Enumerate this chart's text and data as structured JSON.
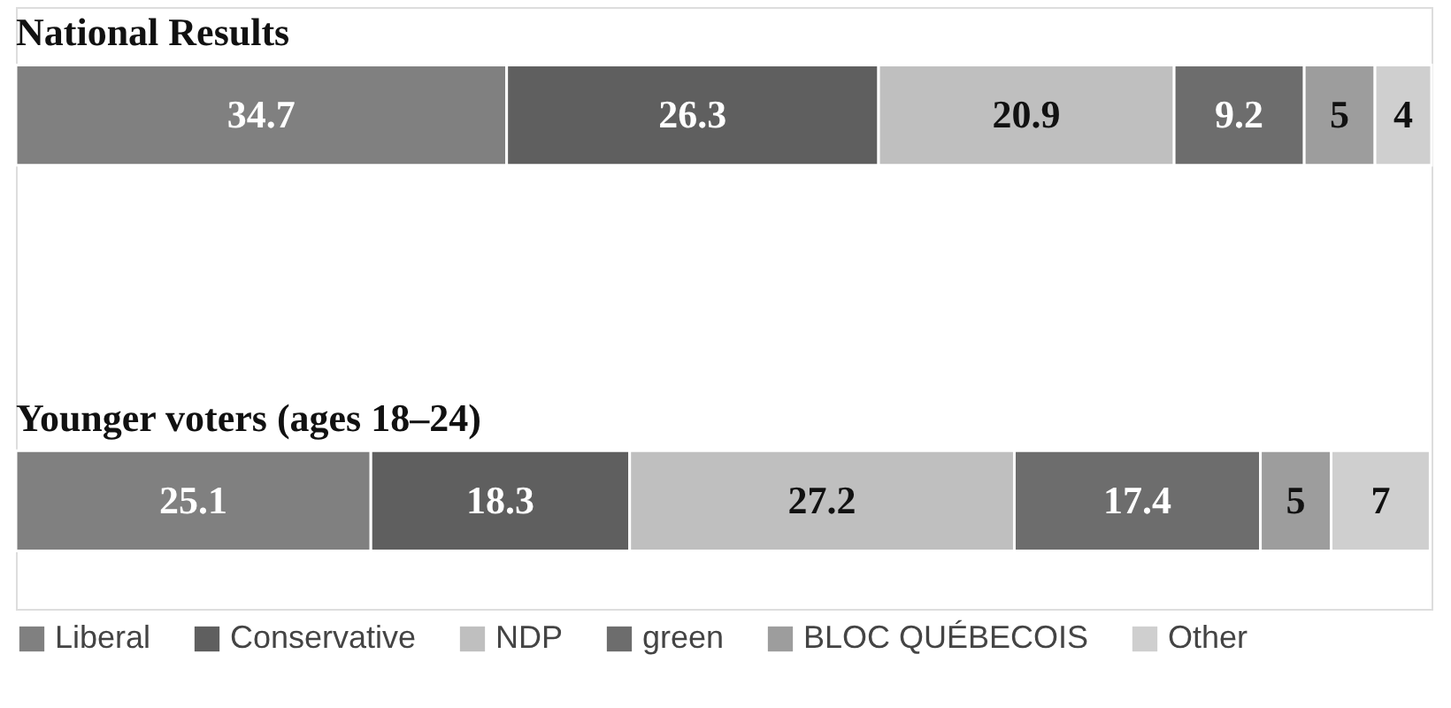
{
  "chart_data": {
    "type": "bar",
    "orientation": "horizontal",
    "stacked": true,
    "categories": [
      "National Results",
      "Younger voters (ages 18–24)"
    ],
    "data_labels": true,
    "legend": "bottom",
    "series": [
      {
        "name": "Liberal",
        "color": "#808080",
        "values": [
          34.7,
          25.1
        ]
      },
      {
        "name": "Conservative",
        "color": "#5f5f5f",
        "values": [
          26.3,
          18.3
        ]
      },
      {
        "name": "NDP",
        "color": "#bfbfbf",
        "values": [
          20.9,
          27.2
        ]
      },
      {
        "name": "green",
        "color": "#6d6d6d",
        "values": [
          9.2,
          17.4
        ]
      },
      {
        "name": "BLOC QUÉBECOIS",
        "color": "#9d9d9d",
        "values": [
          5,
          5
        ]
      },
      {
        "name": "Other",
        "color": "#cfcfcf",
        "values": [
          4,
          7
        ]
      }
    ]
  }
}
